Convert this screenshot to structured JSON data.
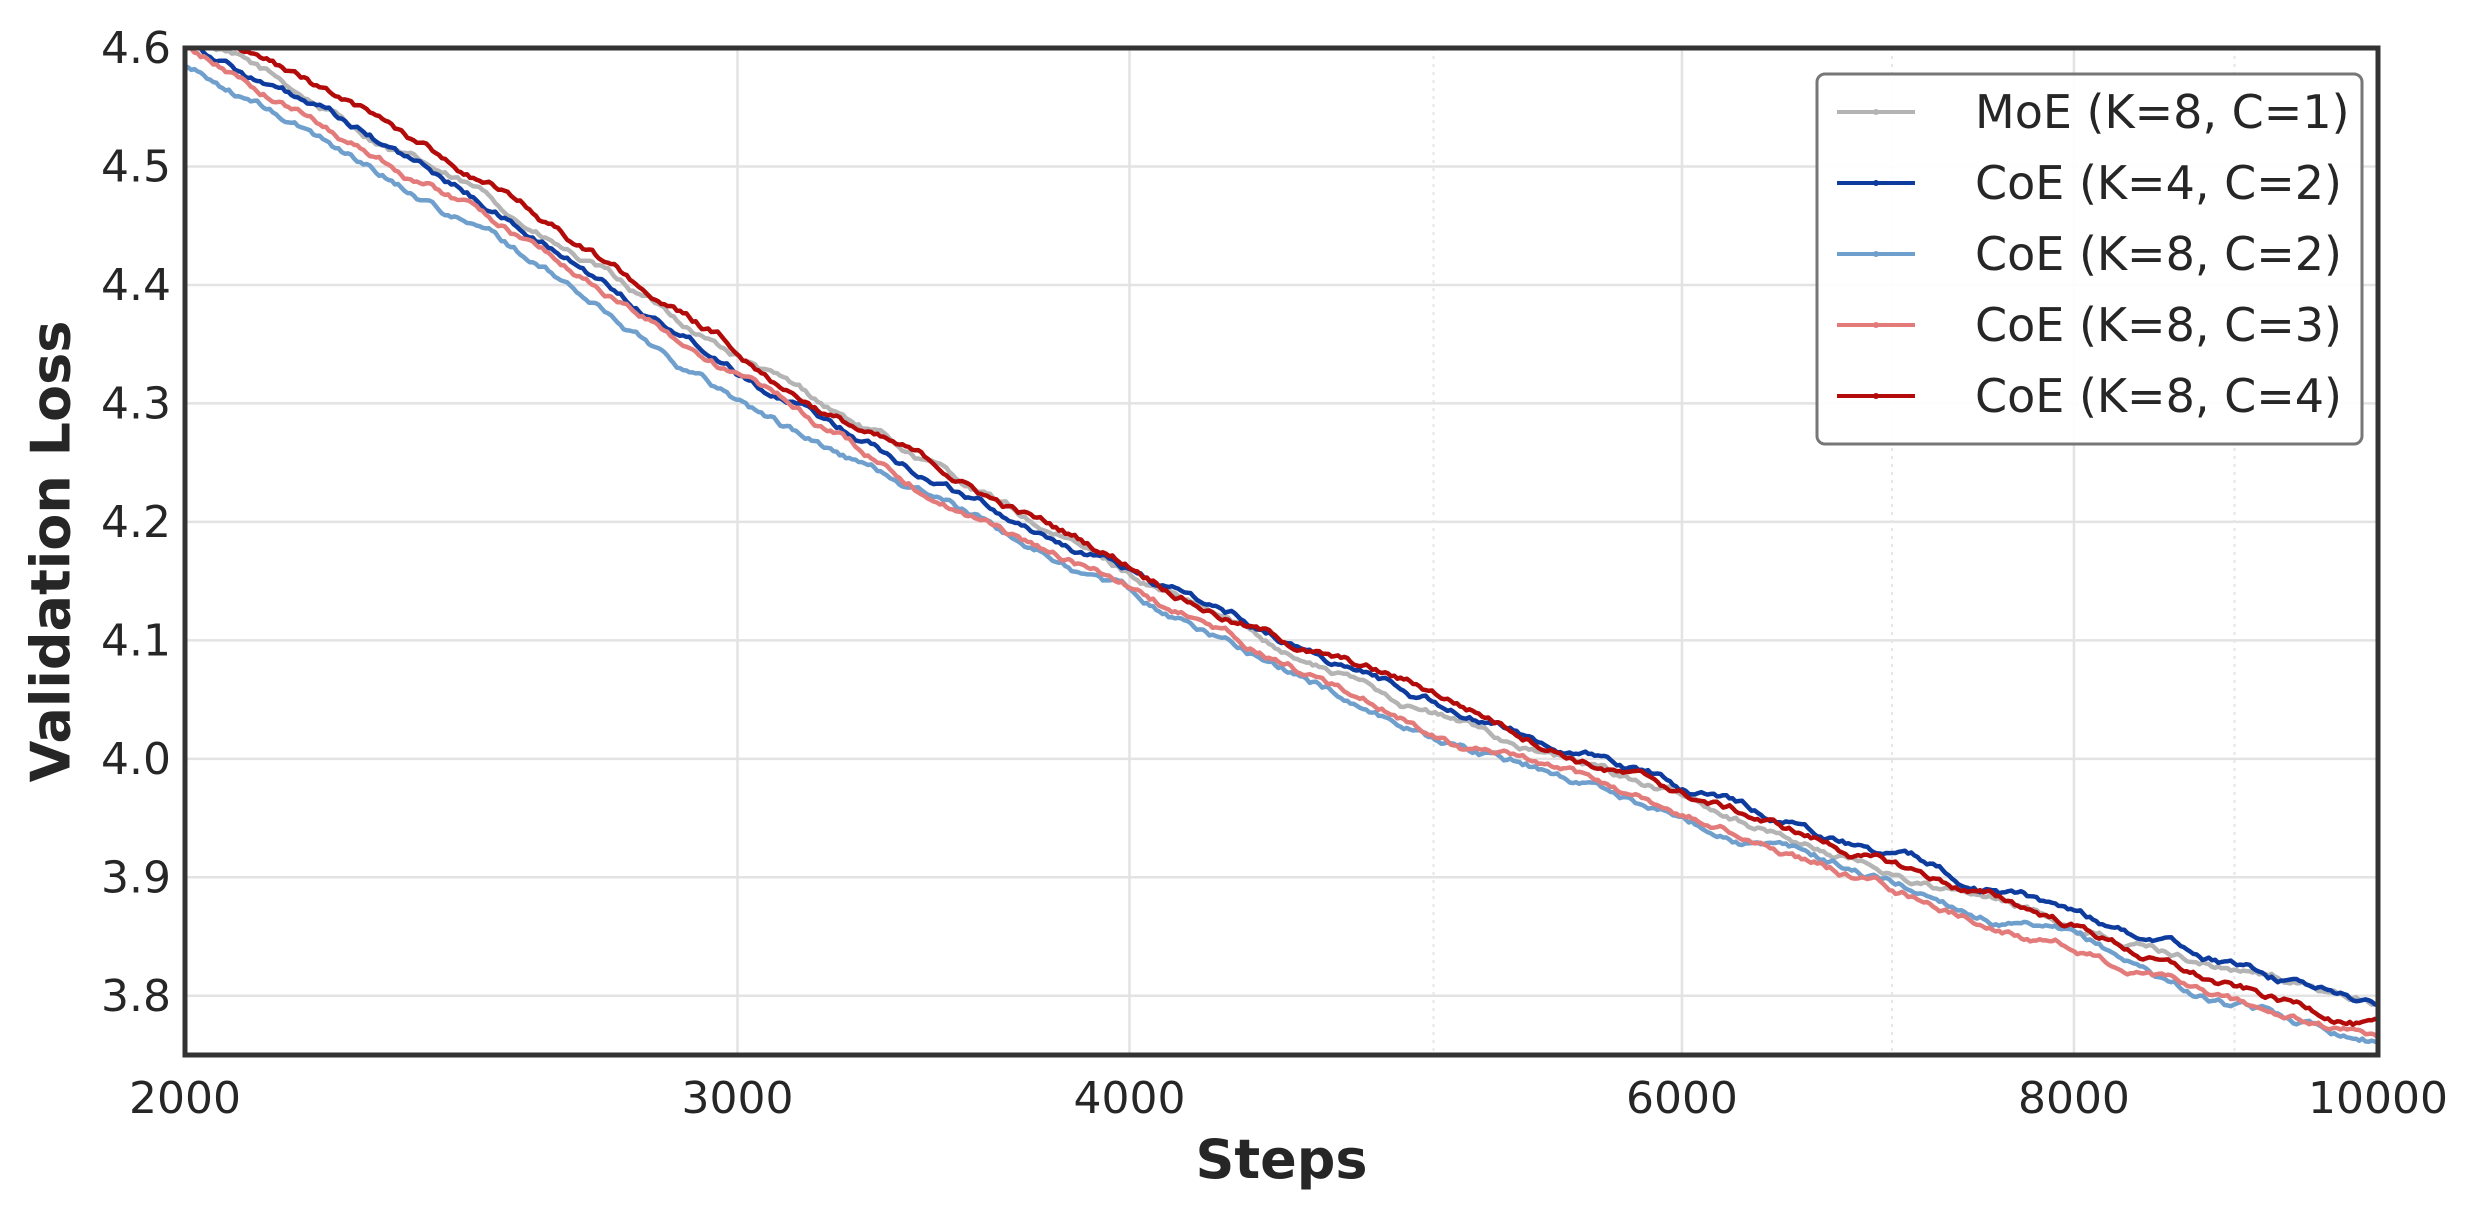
{
  "chart_data": {
    "type": "line",
    "xlabel": "Steps",
    "ylabel": "Validation Loss",
    "x_scale": "log",
    "xlim": [
      2000,
      10000
    ],
    "ylim": [
      3.75,
      4.6
    ],
    "x_ticks": [
      2000,
      3000,
      4000,
      6000,
      8000,
      10000
    ],
    "x_tick_labels": [
      "2000",
      "3000",
      "4000",
      "6000",
      "8000",
      "10000"
    ],
    "y_ticks": [
      3.8,
      3.9,
      4.0,
      4.1,
      4.2,
      4.3,
      4.4,
      4.5,
      4.6
    ],
    "y_tick_labels": [
      "3.8",
      "3.9",
      "4.0",
      "4.1",
      "4.2",
      "4.3",
      "4.4",
      "4.5",
      "4.6"
    ],
    "grid": true,
    "legend_position": "top-right",
    "x": [
      2000,
      2500,
      3000,
      3500,
      4000,
      4500,
      5000,
      5500,
      6000,
      7000,
      8000,
      9000,
      10000
    ],
    "series": [
      {
        "name": "MoE (K=8, C=1)",
        "color": "#b4b4b4",
        "values": [
          4.615,
          4.47,
          4.34,
          4.24,
          4.155,
          4.09,
          4.04,
          4.0,
          3.965,
          3.905,
          3.86,
          3.825,
          3.795
        ]
      },
      {
        "name": "CoE (K=4, C=2)",
        "color": "#0d3c9e",
        "values": [
          4.61,
          4.465,
          4.335,
          4.235,
          4.16,
          4.1,
          4.05,
          4.01,
          3.975,
          3.92,
          3.87,
          3.825,
          3.79
        ]
      },
      {
        "name": "CoE (K=8, C=2)",
        "color": "#6f9fcc",
        "values": [
          4.585,
          4.445,
          4.305,
          4.215,
          4.14,
          4.075,
          4.02,
          3.985,
          3.95,
          3.895,
          3.845,
          3.79,
          3.765
        ]
      },
      {
        "name": "CoE (K=8, C=3)",
        "color": "#e47b7b",
        "values": [
          4.6,
          4.46,
          4.325,
          4.22,
          4.145,
          4.08,
          4.025,
          3.985,
          3.95,
          3.89,
          3.84,
          3.79,
          3.76
        ]
      },
      {
        "name": "CoE (K=8, C=4)",
        "color": "#b30a0a",
        "values": [
          4.625,
          4.485,
          4.345,
          4.24,
          4.165,
          4.1,
          4.055,
          4.01,
          3.97,
          3.91,
          3.86,
          3.805,
          3.775
        ]
      }
    ]
  }
}
